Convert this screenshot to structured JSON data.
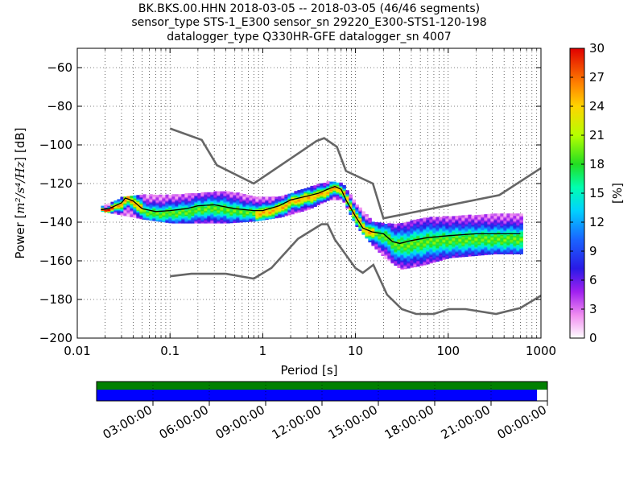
{
  "chart_data": {
    "type": "heatmap",
    "title_lines": [
      "BK.BKS.00.HHN   2018-03-05 -- 2018-03-05  (46/46 segments)",
      "sensor_type STS-1_E300 sensor_sn 29220_E300-STS1-120-198",
      "datalogger_type Q330HR-GFE datalogger_sn 4007"
    ],
    "xlabel": "Period [s]",
    "ylabel_prefix": "Power [",
    "ylabel_math": "m²/s⁴/Hz",
    "ylabel_suffix": "] [dB]",
    "xscale": "log",
    "xlim": [
      0.01,
      1000
    ],
    "ylim": [
      -200,
      -50
    ],
    "x_ticks": [
      {
        "value": 0.01,
        "label": "0.01"
      },
      {
        "value": 0.1,
        "label": "0.1"
      },
      {
        "value": 1,
        "label": "1"
      },
      {
        "value": 10,
        "label": "10"
      },
      {
        "value": 100,
        "label": "100"
      },
      {
        "value": 1000,
        "label": "1000"
      }
    ],
    "y_ticks": [
      {
        "value": -60,
        "label": "−60"
      },
      {
        "value": -80,
        "label": "−80"
      },
      {
        "value": -100,
        "label": "−100"
      },
      {
        "value": -120,
        "label": "−120"
      },
      {
        "value": -140,
        "label": "−140"
      },
      {
        "value": -160,
        "label": "−160"
      },
      {
        "value": -180,
        "label": "−180"
      },
      {
        "value": -200,
        "label": "−200"
      }
    ],
    "grid": true,
    "colorbar": {
      "label": "[%]",
      "range": [
        0,
        30
      ],
      "ticks": [
        {
          "value": 0,
          "label": "0"
        },
        {
          "value": 3,
          "label": "3"
        },
        {
          "value": 6,
          "label": "6"
        },
        {
          "value": 9,
          "label": "9"
        },
        {
          "value": 12,
          "label": "12"
        },
        {
          "value": 15,
          "label": "15"
        },
        {
          "value": 18,
          "label": "18"
        },
        {
          "value": 21,
          "label": "21"
        },
        {
          "value": 24,
          "label": "24"
        },
        {
          "value": 27,
          "label": "27"
        },
        {
          "value": 30,
          "label": "30"
        }
      ]
    },
    "high_noise_model": [
      [
        0.1,
        -91.5
      ],
      [
        0.22,
        -97.4
      ],
      [
        0.32,
        -110.5
      ],
      [
        0.8,
        -120
      ],
      [
        3.8,
        -98
      ],
      [
        4.6,
        -96.5
      ],
      [
        6.3,
        -101
      ],
      [
        7.9,
        -113.5
      ],
      [
        15.4,
        -120
      ],
      [
        20,
        -138
      ],
      [
        354.8,
        -126
      ],
      [
        1000,
        -112
      ]
    ],
    "low_noise_model": [
      [
        0.1,
        -168
      ],
      [
        0.17,
        -166.7
      ],
      [
        0.4,
        -166.7
      ],
      [
        0.8,
        -169.2
      ],
      [
        1.24,
        -163.7
      ],
      [
        2.4,
        -148.6
      ],
      [
        4.3,
        -141.1
      ],
      [
        5,
        -141.1
      ],
      [
        6,
        -149
      ],
      [
        10,
        -163.8
      ],
      [
        12,
        -166.2
      ],
      [
        15.6,
        -162.1
      ],
      [
        21.9,
        -177.5
      ],
      [
        31.6,
        -185
      ],
      [
        45,
        -187.5
      ],
      [
        70,
        -187.5
      ],
      [
        101,
        -185
      ],
      [
        154,
        -185
      ],
      [
        328,
        -187.5
      ],
      [
        600,
        -184.4
      ],
      [
        1000,
        -178
      ]
    ],
    "mean_curve": [
      [
        0.018,
        -133.5
      ],
      [
        0.022,
        -133
      ],
      [
        0.03,
        -130
      ],
      [
        0.033,
        -127.5
      ],
      [
        0.04,
        -129
      ],
      [
        0.05,
        -133
      ],
      [
        0.07,
        -134.5
      ],
      [
        0.1,
        -134
      ],
      [
        0.15,
        -133
      ],
      [
        0.2,
        -131.5
      ],
      [
        0.3,
        -131
      ],
      [
        0.5,
        -133
      ],
      [
        0.8,
        -134
      ],
      [
        1.0,
        -134
      ],
      [
        1.5,
        -131.5
      ],
      [
        2.0,
        -128.5
      ],
      [
        3.0,
        -126.5
      ],
      [
        4.0,
        -125
      ],
      [
        5.0,
        -123
      ],
      [
        6.0,
        -121.5
      ],
      [
        7.0,
        -123
      ],
      [
        8.0,
        -129
      ],
      [
        10.0,
        -137
      ],
      [
        12.0,
        -143
      ],
      [
        15.0,
        -145
      ],
      [
        20.0,
        -146
      ],
      [
        25.0,
        -150
      ],
      [
        30.0,
        -151
      ],
      [
        40.0,
        -149.5
      ],
      [
        60.0,
        -148
      ],
      [
        100.0,
        -147
      ],
      [
        200.0,
        -146
      ],
      [
        400.0,
        -146
      ],
      [
        600.0,
        -146
      ]
    ],
    "median_curve": [
      [
        0.018,
        -133.5
      ],
      [
        0.022,
        -133
      ],
      [
        0.03,
        -130
      ],
      [
        0.033,
        -127.5
      ],
      [
        0.04,
        -129.5
      ],
      [
        0.05,
        -134
      ],
      [
        0.07,
        -135.5
      ],
      [
        0.1,
        -135
      ],
      [
        0.15,
        -134.5
      ],
      [
        0.2,
        -133
      ],
      [
        0.3,
        -132.5
      ],
      [
        0.5,
        -134
      ],
      [
        0.8,
        -135
      ],
      [
        1.0,
        -135
      ],
      [
        1.5,
        -132.5
      ],
      [
        2.0,
        -129
      ],
      [
        3.0,
        -127
      ],
      [
        4.0,
        -125.5
      ],
      [
        5.0,
        -123.5
      ],
      [
        6.0,
        -122
      ],
      [
        7.0,
        -123.5
      ],
      [
        8.0,
        -129.5
      ],
      [
        10.0,
        -137.5
      ],
      [
        12.0,
        -143.5
      ],
      [
        15.0,
        -145.5
      ],
      [
        20.0,
        -147
      ],
      [
        25.0,
        -151
      ],
      [
        30.0,
        -152
      ],
      [
        40.0,
        -151
      ],
      [
        60.0,
        -149.5
      ],
      [
        100.0,
        -149
      ],
      [
        200.0,
        -148.5
      ],
      [
        400.0,
        -148.5
      ],
      [
        600.0,
        -148.5
      ]
    ],
    "density_band": [
      {
        "period": 0.018,
        "low": -134,
        "high": -132
      },
      {
        "period": 0.03,
        "low": -136,
        "high": -127
      },
      {
        "period": 0.05,
        "low": -138,
        "high": -126
      },
      {
        "period": 0.1,
        "low": -140,
        "high": -126
      },
      {
        "period": 0.2,
        "low": -140,
        "high": -125
      },
      {
        "period": 0.4,
        "low": -140,
        "high": -124
      },
      {
        "period": 0.8,
        "low": -139,
        "high": -127
      },
      {
        "period": 1.5,
        "low": -137,
        "high": -127
      },
      {
        "period": 3.0,
        "low": -133,
        "high": -122
      },
      {
        "period": 5.0,
        "low": -128,
        "high": -119
      },
      {
        "period": 7.0,
        "low": -128,
        "high": -120
      },
      {
        "period": 10.0,
        "low": -142,
        "high": -131
      },
      {
        "period": 15.0,
        "low": -152,
        "high": -140
      },
      {
        "period": 20.0,
        "low": -158,
        "high": -141
      },
      {
        "period": 30.0,
        "low": -164,
        "high": -141
      },
      {
        "period": 50.0,
        "low": -162,
        "high": -138
      },
      {
        "period": 100.0,
        "low": -158,
        "high": -137
      },
      {
        "period": 300.0,
        "low": -156,
        "high": -136
      },
      {
        "period": 600.0,
        "low": -156,
        "high": -136
      }
    ],
    "timeline": {
      "labels": [
        "03:00:00",
        "06:00:00",
        "09:00:00",
        "12:00:00",
        "15:00:00",
        "18:00:00",
        "21:00:00",
        "00:00:00"
      ],
      "data_coverage_fraction": 0.977,
      "colors": {
        "upper": "#008000",
        "lower": "#0000ff"
      }
    }
  }
}
